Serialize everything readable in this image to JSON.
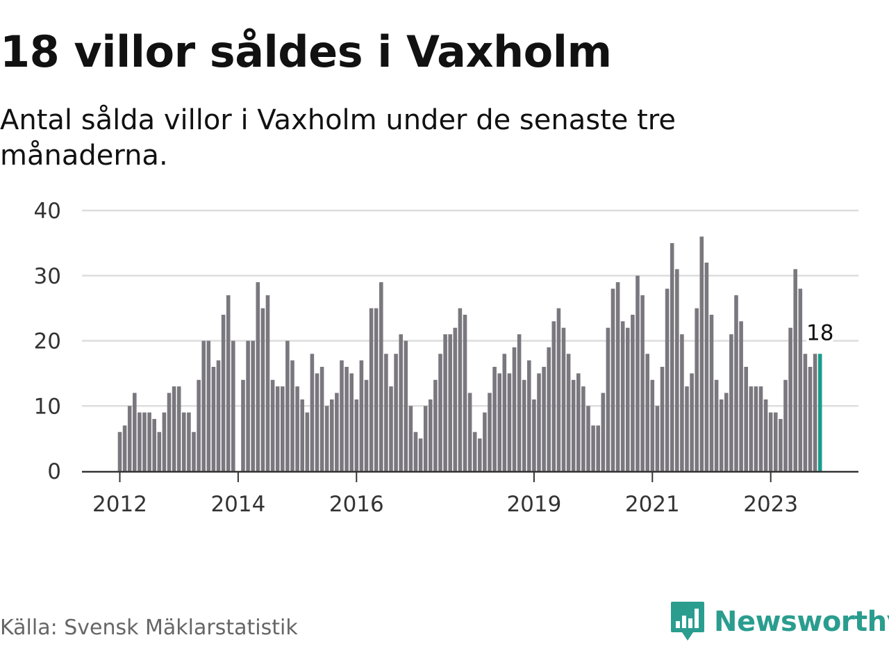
{
  "header": {
    "title": "18 villor såldes i Vaxholm",
    "subtitle": "Antal sålda villor i Vaxholm under de senaste tre månaderna."
  },
  "footer": {
    "source": "Källa: Svensk Mäklarstatistik",
    "brand": "Newsworthy"
  },
  "colors": {
    "bar": "#7a787e",
    "highlight": "#1a9c8c",
    "grid": "#dddddd",
    "axis": "#333333",
    "brand": "#2a9d8f"
  },
  "icons": {
    "logo": "bar-chart-speech-bubble-icon"
  },
  "chart_data": {
    "type": "bar",
    "title": "18 villor såldes i Vaxholm",
    "subtitle": "Antal sålda villor i Vaxholm under de senaste tre månaderna.",
    "x_unit": "month",
    "x_start": "2012-01",
    "x_end": "2023-12",
    "x_ticks": [
      "2012",
      "2014",
      "2016",
      "2019",
      "2021",
      "2023"
    ],
    "x_tick_dates": [
      "2012-01",
      "2014-01",
      "2016-01",
      "2019-01",
      "2021-01",
      "2023-01"
    ],
    "y_ticks": [
      0,
      10,
      20,
      30,
      40
    ],
    "ylim": [
      0,
      40
    ],
    "grid": true,
    "last_value_label": "18",
    "values": [
      6,
      7,
      10,
      12,
      9,
      9,
      9,
      8,
      6,
      9,
      12,
      13,
      13,
      9,
      9,
      6,
      14,
      20,
      20,
      16,
      17,
      24,
      27,
      20,
      0,
      14,
      20,
      20,
      29,
      25,
      27,
      14,
      13,
      13,
      20,
      17,
      13,
      11,
      9,
      18,
      15,
      16,
      10,
      11,
      12,
      17,
      16,
      15,
      11,
      17,
      14,
      25,
      25,
      29,
      18,
      13,
      18,
      21,
      20,
      10,
      6,
      5,
      10,
      11,
      14,
      18,
      21,
      21,
      22,
      25,
      24,
      12,
      6,
      5,
      9,
      12,
      16,
      15,
      18,
      15,
      19,
      21,
      14,
      17,
      11,
      15,
      16,
      19,
      23,
      25,
      22,
      18,
      14,
      15,
      13,
      10,
      7,
      7,
      12,
      22,
      28,
      29,
      23,
      22,
      24,
      30,
      27,
      18,
      14,
      10,
      16,
      28,
      35,
      31,
      21,
      13,
      15,
      25,
      36,
      32,
      24,
      14,
      11,
      12,
      21,
      27,
      23,
      16,
      13,
      13,
      13,
      11,
      9,
      9,
      8,
      14,
      22,
      31,
      28,
      18,
      16,
      18,
      18
    ]
  }
}
